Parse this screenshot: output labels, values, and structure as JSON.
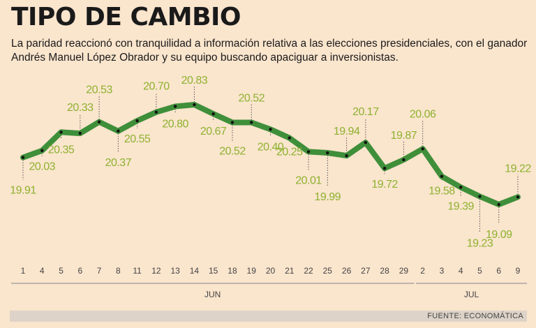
{
  "title": "TIPO DE CAMBIO",
  "subtitle": "La paridad reaccionó con tranquilidad a información relativa a las elecciones presidenciales, con el ganador Andrés Manuel López Obrador y su equipo buscando apaciguar a inversionistas.",
  "source": "FUENTE: ECONOMÁTICA",
  "colors": {
    "line": "#3f8f3a",
    "label": "#8db22f",
    "background": "#fae5cd",
    "axis": "#999999"
  },
  "chart_data": {
    "type": "line",
    "title": "TIPO DE CAMBIO",
    "xlabel": "",
    "ylabel": "",
    "categories": [
      "1",
      "4",
      "5",
      "6",
      "7",
      "8",
      "11",
      "12",
      "13",
      "14",
      "15",
      "18",
      "19",
      "20",
      "21",
      "22",
      "25",
      "26",
      "27",
      "28",
      "29",
      "2",
      "3",
      "4",
      "5",
      "6",
      "9"
    ],
    "month_groups": [
      {
        "label": "JUN",
        "count": 21
      },
      {
        "label": "JUL",
        "count": 6
      }
    ],
    "series": [
      {
        "name": "",
        "values": [
          19.91,
          20.03,
          20.35,
          20.33,
          20.53,
          20.37,
          20.55,
          20.7,
          20.8,
          20.83,
          20.67,
          20.52,
          20.52,
          20.4,
          20.25,
          20.01,
          19.99,
          19.94,
          20.17,
          19.72,
          19.87,
          20.06,
          19.58,
          19.39,
          19.23,
          19.09,
          19.22
        ]
      }
    ],
    "ylim": [
      18.8,
      21.2
    ],
    "grid": false,
    "legend": "none"
  }
}
